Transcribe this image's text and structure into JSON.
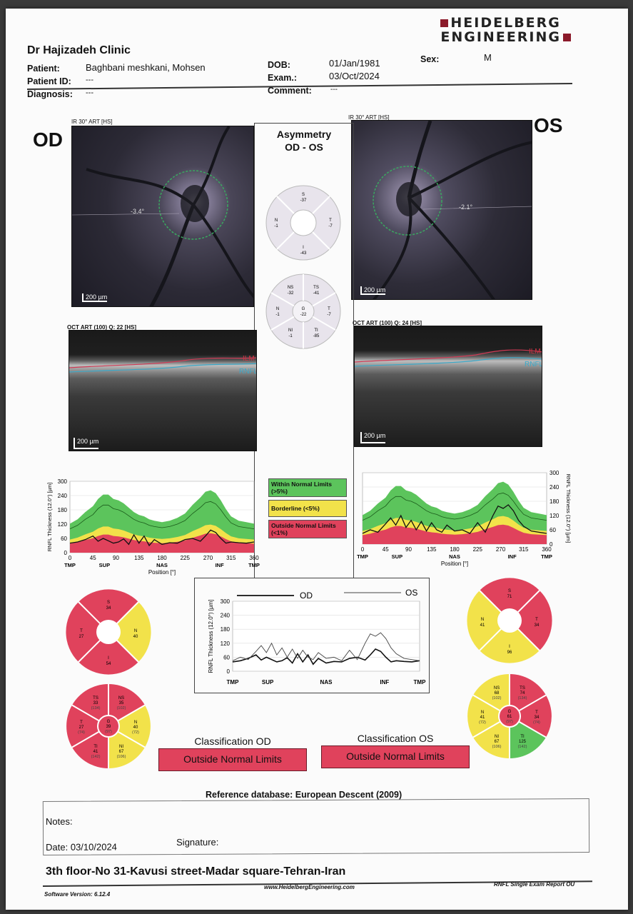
{
  "header": {
    "clinic": "Dr Hajizadeh Clinic",
    "logo_line1": "HEIDELBERG",
    "logo_line2": "ENGINEERING",
    "patient_label": "Patient:",
    "patient_value": "Baghbani meshkani, Mohsen",
    "patient_id_label": "Patient ID:",
    "patient_id_value": "---",
    "diagnosis_label": "Diagnosis:",
    "diagnosis_value": "---",
    "dob_label": "DOB:",
    "dob_value": "01/Jan/1981",
    "exam_label": "Exam.:",
    "exam_value": "03/Oct/2024",
    "comment_label": "Comment:",
    "comment_value": "---",
    "sex_label": "Sex:",
    "sex_value": "M"
  },
  "od": {
    "eye_label": "OD",
    "ir_label": "IR 30° ART [HS]",
    "ir_scale": "200 µm",
    "angle": "-3.4°",
    "oct_label": "OCT ART (100) Q: 22 [HS]",
    "oct_scale": "200 µm",
    "ilm": "ILM",
    "rnfl": "RNFL",
    "sectors4": {
      "S": "34",
      "T": "27",
      "N": "40",
      "I": "54"
    },
    "sectors6": {
      "TS": {
        "value": "33",
        "ref": "(134)"
      },
      "NS": {
        "value": "35",
        "ref": "(102)"
      },
      "T": {
        "value": "27",
        "ref": "(74)"
      },
      "G": {
        "value": "39",
        "ref": "(97)"
      },
      "N": {
        "value": "40",
        "ref": "(72)"
      },
      "TI": {
        "value": "41",
        "ref": "(142)"
      },
      "NI": {
        "value": "67",
        "ref": "(106)"
      }
    },
    "classification_title": "Classification OD",
    "classification": "Outside Normal Limits"
  },
  "os": {
    "eye_label": "OS",
    "ir_label": "IR 30° ART [HS]",
    "ir_scale": "200 µm",
    "angle": "-2.1°",
    "oct_label": "OCT ART (100) Q: 24 [HS]",
    "oct_scale": "200 µm",
    "ilm": "ILM",
    "rnfl": "RNFL",
    "sectors4": {
      "S": "71",
      "T": "34",
      "N": "41",
      "I": "96"
    },
    "sectors6": {
      "NS": {
        "value": "68",
        "ref": "(102)"
      },
      "TS": {
        "value": "74",
        "ref": "(134)"
      },
      "N": {
        "value": "41",
        "ref": "(72)"
      },
      "G": {
        "value": "61",
        "ref": "(97)"
      },
      "T": {
        "value": "34",
        "ref": "(74)"
      },
      "NI": {
        "value": "67",
        "ref": "(106)"
      },
      "TI": {
        "value": "125",
        "ref": "(142)"
      }
    },
    "classification_title": "Classification OS",
    "classification": "Outside Normal Limits"
  },
  "asymmetry": {
    "title1": "Asymmetry",
    "title2": "OD - OS",
    "sectors4": {
      "S": "-37",
      "N": "-1",
      "T": "-7",
      "I": "-43"
    },
    "sectors6": {
      "NS": "-32",
      "TS": "-41",
      "N": "-1",
      "G": "-22",
      "T": "-7",
      "NI": "-1",
      "TI": "-85"
    }
  },
  "legend": {
    "within": "Within Normal Limits",
    "within_sub": "(>5%)",
    "borderline": "Borderline (<5%)",
    "outside": "Outside Normal Limits",
    "outside_sub": "(<1%)"
  },
  "chart_labels": {
    "ylabel": "RNFL Thickness (12.0°) [µm]",
    "xlabel": "Position [°]",
    "compare_od": "OD",
    "compare_os": "OS"
  },
  "colors": {
    "within": "#5cc45c",
    "borderline": "#f2e24a",
    "outside": "#e0425c"
  },
  "chart_data": [
    {
      "type": "line",
      "eye": "OD",
      "ylabel": "RNFL Thickness (12.0°) [µm]",
      "xlabel": "Position [°]",
      "ylim": [
        0,
        300
      ],
      "xlim": [
        0,
        360
      ],
      "yticks": [
        0,
        60,
        120,
        180,
        240,
        300
      ],
      "xticks": [
        0,
        45,
        90,
        135,
        180,
        225,
        270,
        315,
        360
      ],
      "xsector_labels": [
        "TMP",
        "SUP",
        "NAS",
        "INF",
        "TMP"
      ],
      "x": [
        0,
        15,
        30,
        45,
        55,
        65,
        75,
        85,
        95,
        105,
        115,
        125,
        135,
        145,
        155,
        165,
        180,
        195,
        210,
        225,
        240,
        255,
        265,
        275,
        285,
        295,
        305,
        315,
        330,
        345,
        360
      ],
      "series": [
        {
          "values": [
            40,
            45,
            55,
            70,
            48,
            60,
            50,
            40,
            45,
            58,
            35,
            75,
            40,
            70,
            30,
            55,
            35,
            42,
            40,
            55,
            60,
            48,
            70,
            95,
            85,
            60,
            40,
            45,
            42,
            40,
            45
          ]
        },
        {
          "values": [
            100,
            115,
            140,
            160,
            185,
            200,
            200,
            185,
            180,
            170,
            155,
            140,
            130,
            125,
            115,
            110,
            105,
            110,
            120,
            135,
            165,
            190,
            210,
            215,
            205,
            180,
            150,
            125,
            110,
            105,
            100
          ]
        }
      ]
    },
    {
      "type": "line",
      "eye": "OS",
      "ylabel": "RNFL Thickness (12.0°) [µm]",
      "xlabel": "Position [°]",
      "ylim": [
        0,
        300
      ],
      "xlim": [
        0,
        360
      ],
      "yticks": [
        0,
        60,
        120,
        180,
        240,
        300
      ],
      "xticks": [
        0,
        45,
        90,
        135,
        180,
        225,
        270,
        315,
        360
      ],
      "xsector_labels": [
        "TMP",
        "SUP",
        "NAS",
        "INF",
        "TMP"
      ],
      "x": [
        0,
        15,
        30,
        45,
        55,
        65,
        75,
        85,
        95,
        105,
        115,
        125,
        135,
        145,
        155,
        165,
        180,
        195,
        210,
        225,
        240,
        255,
        265,
        275,
        285,
        295,
        305,
        315,
        330,
        345,
        360
      ],
      "series": [
        {
          "values": [
            45,
            60,
            50,
            85,
            110,
            80,
            120,
            70,
            100,
            60,
            95,
            55,
            90,
            60,
            50,
            80,
            55,
            60,
            45,
            90,
            50,
            120,
            160,
            150,
            165,
            140,
            100,
            75,
            55,
            50,
            45
          ]
        },
        {
          "values": [
            100,
            115,
            140,
            160,
            185,
            200,
            200,
            185,
            180,
            170,
            155,
            140,
            130,
            125,
            115,
            110,
            105,
            110,
            120,
            135,
            165,
            190,
            210,
            215,
            205,
            180,
            150,
            125,
            110,
            105,
            100
          ]
        }
      ]
    },
    {
      "type": "line",
      "eye": "OD vs OS",
      "ylabel": "RNFL Thickness (12.0°) [µm]",
      "ylim": [
        0,
        300
      ],
      "xlim": [
        0,
        360
      ],
      "yticks": [
        0,
        60,
        120,
        180,
        240,
        300
      ],
      "xsector_labels": [
        "TMP",
        "SUP",
        "NAS",
        "INF",
        "TMP"
      ],
      "x": [
        0,
        15,
        30,
        45,
        55,
        65,
        75,
        85,
        95,
        105,
        115,
        125,
        135,
        145,
        155,
        165,
        180,
        195,
        210,
        225,
        240,
        255,
        265,
        275,
        285,
        295,
        305,
        315,
        330,
        345,
        360
      ],
      "series": [
        {
          "name": "OD",
          "values": [
            40,
            45,
            55,
            70,
            48,
            60,
            50,
            40,
            45,
            58,
            35,
            75,
            40,
            70,
            30,
            55,
            35,
            42,
            40,
            55,
            60,
            48,
            70,
            95,
            85,
            60,
            40,
            45,
            42,
            40,
            45
          ]
        },
        {
          "name": "OS",
          "values": [
            45,
            60,
            50,
            85,
            110,
            80,
            120,
            70,
            100,
            60,
            95,
            55,
            90,
            60,
            50,
            80,
            55,
            60,
            45,
            90,
            50,
            120,
            160,
            150,
            165,
            140,
            100,
            75,
            55,
            50,
            45
          ]
        }
      ]
    }
  ],
  "footer": {
    "reference": "Reference database: European Descent (2009)",
    "notes_label": "Notes:",
    "date_label": "Date: 03/10/2024",
    "signature_label": "Signature:",
    "address": "3th floor-No 31-Kavusi street-Madar square-Tehran-Iran",
    "software": "Software Version: 6.12.4",
    "website": "www.HeidelbergEngineering.com",
    "report_name": "RNFL Single Exam Report OU"
  }
}
